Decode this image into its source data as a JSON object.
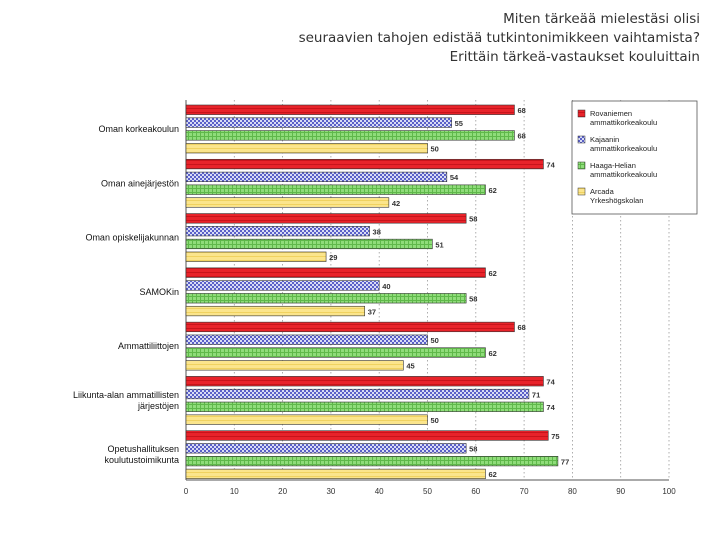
{
  "page_title": [
    "Miten tärkeää mielestäsi olisi",
    "seuraavien tahojen edistää tutkintonimikkeen vaihtamista?",
    "Erittäin tärkeä-vastaukset kouluittain"
  ],
  "colors": {
    "rovaniemi": "#e8232a",
    "kajaani": "#5a60c8",
    "haaga": "#8fdc7a",
    "arcada": "#fbe58c",
    "grid": "#9a9a9a",
    "axis": "#555555"
  },
  "chart_data": {
    "type": "bar",
    "orientation": "horizontal",
    "title": "Erittäin tärkeä-vastaukset kouluittain",
    "xlabel": "",
    "ylabel": "",
    "xlim": [
      0,
      100
    ],
    "x_ticks": [
      "0",
      "10",
      "20",
      "30",
      "40",
      "50",
      "60",
      "70",
      "80",
      "90",
      "100"
    ],
    "grid": "vertical dotted",
    "legend_position": "right",
    "categories": [
      "Oman korkeakoulun",
      "Oman ainejärjestön",
      "Oman opiskelijakunnan",
      "SAMOKin",
      "Ammattiliittojen",
      "Liikunta-alan ammatillisten järjestöjen",
      "Opetushallituksen koulutustoimikunta"
    ],
    "category_lines": [
      [
        "Oman korkeakoulun"
      ],
      [
        "Oman ainejärjestön"
      ],
      [
        "Oman opiskelijakunnan"
      ],
      [
        "SAMOKin"
      ],
      [
        "Ammattiliittojen"
      ],
      [
        "Liikunta-alan ammatillisten",
        "järjestöjen"
      ],
      [
        "Opetushallituksen",
        "koulutustoimikunta"
      ]
    ],
    "series": [
      {
        "key": "rovaniemi",
        "name": "Rovaniemen ammattikorkeakoulu",
        "legend_lines": [
          "Rovaniemen",
          "ammattikorkeakoulu"
        ],
        "values": [
          68,
          74,
          58,
          62,
          68,
          74,
          75
        ]
      },
      {
        "key": "kajaani",
        "name": "Kajaanin ammattikorkeakoulu",
        "legend_lines": [
          "Kajaanin",
          "ammattikorkeakoulu"
        ],
        "values": [
          55,
          54,
          38,
          40,
          50,
          71,
          58
        ]
      },
      {
        "key": "haaga",
        "name": "Haaga-Helian ammattikorkeakoulu",
        "legend_lines": [
          "Haaga-Helian",
          "ammattikorkeakoulu"
        ],
        "values": [
          68,
          62,
          51,
          58,
          62,
          74,
          77
        ]
      },
      {
        "key": "arcada",
        "name": "Arcada Yrkeshögskolan",
        "legend_lines": [
          "Arcada",
          "Yrkeshögskolan"
        ],
        "values": [
          50,
          42,
          29,
          37,
          45,
          50,
          62
        ]
      }
    ]
  }
}
